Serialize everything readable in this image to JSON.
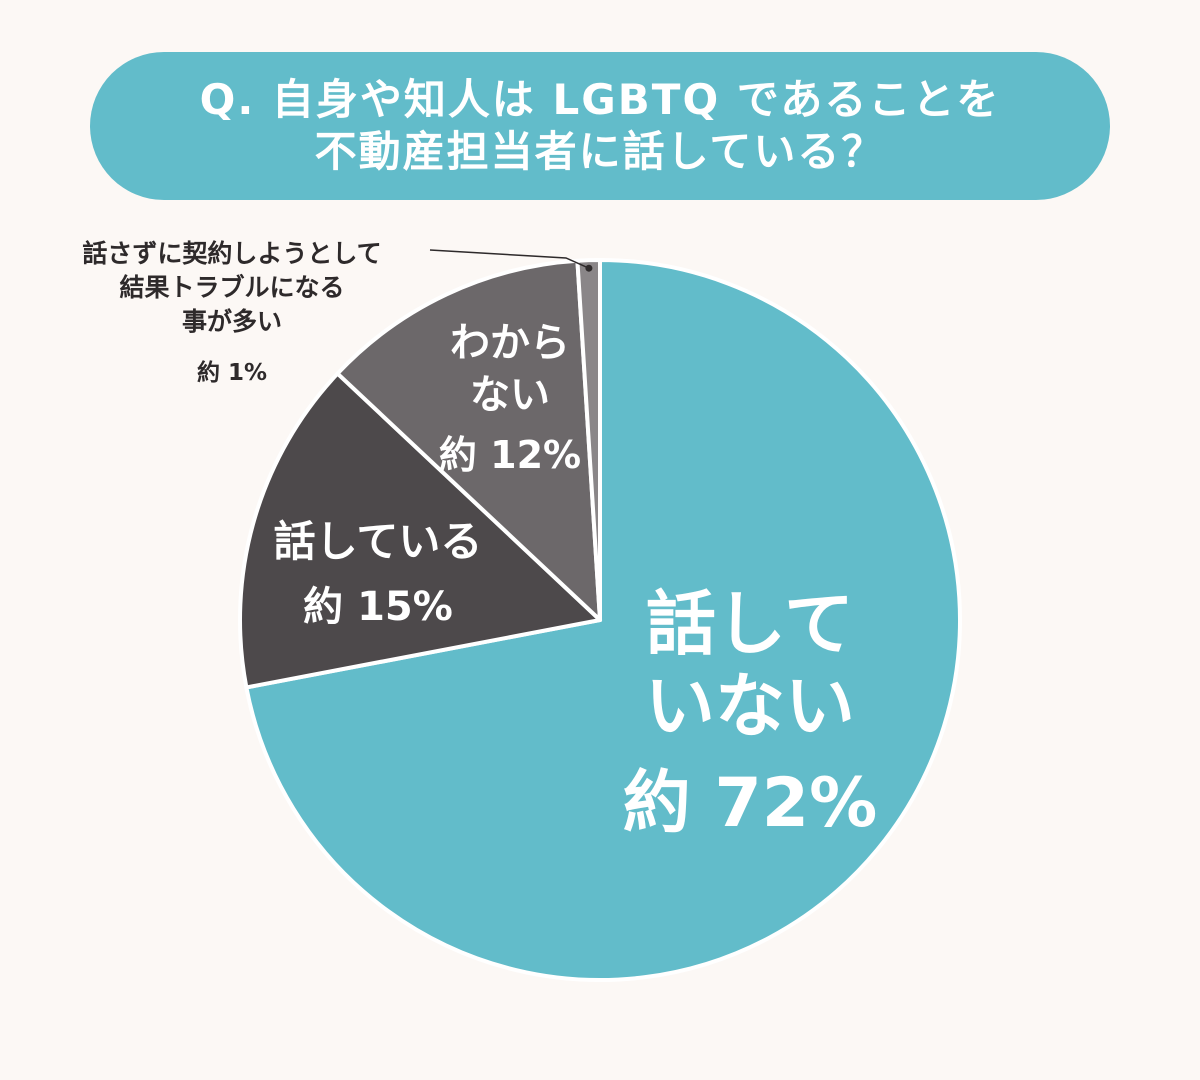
{
  "title": {
    "line1": "Q. 自身や知人は LGBTQ であることを",
    "line2": "不動産担当者に話している？"
  },
  "chart_data": {
    "type": "pie",
    "start_angle_deg": 0,
    "direction": "clockwise",
    "slices": [
      {
        "label_lines": [
          "話して",
          "いない"
        ],
        "value_label": "約 72%",
        "value": 72,
        "color": "#62bcca",
        "label_color": "#ffffff"
      },
      {
        "label_lines": [
          "話している"
        ],
        "value_label": "約 15%",
        "value": 15,
        "color": "#4d494b",
        "label_color": "#ffffff"
      },
      {
        "label_lines": [
          "わから",
          "ない"
        ],
        "value_label": "約 12%",
        "value": 12,
        "color": "#6c686a",
        "label_color": "#ffffff"
      },
      {
        "label_lines": [
          "話さずに契約しようとして",
          "結果トラブルになる",
          "事が多い"
        ],
        "value_label": "約 1%",
        "value": 1,
        "color": "#8a8688",
        "label_color": "#2e2a2b"
      }
    ]
  }
}
